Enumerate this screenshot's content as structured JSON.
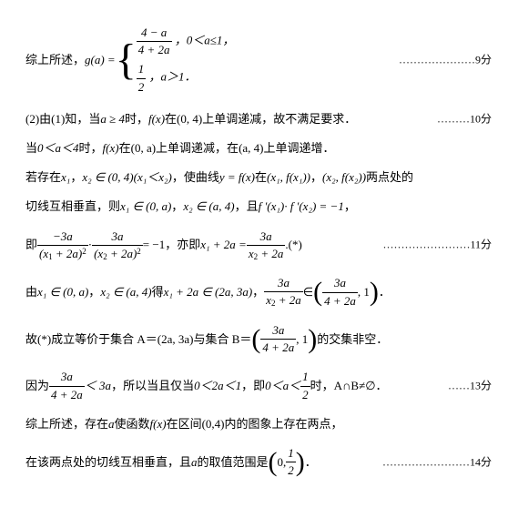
{
  "summary_label": "综上所述，",
  "g_expr": "g(a) =",
  "case1_cond": "，0＜a≤1，",
  "case2_cond": "，a＞1．",
  "case1_num": "4 − a",
  "case1_den": "4 + 2a",
  "case2_num": "1",
  "case2_den": "2",
  "score9": "…………………9分",
  "line2_t1": "(2)由(1)知，当 ",
  "line2_m1": "a ≥ 4",
  "line2_t2": "时，",
  "line2_m2": "f(x)",
  "line2_t3": "在",
  "line2_m3": "(0, 4)",
  "line2_t4": "上单调递减，故不满足要求．",
  "score10": "………10分",
  "line3_t1": "当",
  "line3_m1": "0＜a＜4",
  "line3_t2": "时，",
  "line3_m2": "f(x)",
  "line3_t3": "在",
  "line3_m3": "(0, a)",
  "line3_t4": "上单调递减，在",
  "line3_m4": "(a, 4)",
  "line3_t5": "上单调递增．",
  "line4_t1": "若存在",
  "line4_m1": "x₁",
  "line4_t2": "，",
  "line4_m2": "x₂ ∈ (0, 4)",
  "line4_m3": " (x₁＜x₂)",
  "line4_t3": "，使曲线",
  "line4_m4": "y = f(x)",
  "line4_t4": "在",
  "line4_m5": "(x₁, f(x₁))",
  "line4_t5": "，",
  "line4_m6": "(x₂, f(x₂))",
  "line4_t6": "两点处的",
  "line5_t1": "切线互相垂直，则",
  "line5_m1": "x₁ ∈ (0, a)",
  "line5_t2": "，",
  "line5_m2": "x₂ ∈ (a, 4)",
  "line5_t3": "，且",
  "line5_m3": "f '(x₁)· f '(x₂) = −1",
  "line5_t4": "，",
  "line6_t1": "即 ",
  "f1_num": "−3a",
  "f1_den_l": "(x",
  "f1_den_sub": "1",
  "f1_den_r": " + 2a)",
  "f1_den_sup": "2",
  "mid_dot": " · ",
  "f2_num": "3a",
  "f2_den_l": "(x",
  "f2_den_sub": "2",
  "f2_den_r": " + 2a)",
  "eq_neg1": " = −1",
  "line6_t2": "，亦即 ",
  "line6_m2": "x₁ + 2a = ",
  "f3_num": "3a",
  "f3_den_l": "x",
  "f3_den_sub": "2",
  "f3_den_r": " + 2a",
  "star": " .(*)",
  "score11": "……………………11分",
  "line7_t1": "由",
  "line7_m1": "x₁ ∈ (0, a)",
  "line7_t2": "，",
  "line7_m2": "x₂ ∈ (a, 4)",
  "line7_t3": "得",
  "line7_m3": "x₁ + 2a ∈ (2a, 3a)",
  "line7_t4": " ，",
  "f4_num": "3a",
  "f4_den_l": "x",
  "f4_den_sub": "2",
  "f4_den_r": " + 2a",
  "in_big": " ∈ ",
  "f5_num": "3a",
  "f5_den": "4 + 2a",
  "one_close": ", 1",
  "period": "．",
  "line8_t1": "故(*)成立等价于集合 A＝",
  "line8_m1": "(2a, 3a)",
  "line8_t2": " 与集合 B＝",
  "line8_t3": "的交集非空．",
  "line9_t1": "因为 ",
  "lt3a": " ＜ 3a",
  "line9_t2": "，所以当且仅当",
  "line9_m1": "0＜2a＜1",
  "line9_t3": "，即",
  "line9_m2": "0＜a＜",
  "half_num": "1",
  "half_den": "2",
  "line9_t4": "时，A∩B≠∅．",
  "score13": "……13分",
  "line10_t1": "综上所述，存在",
  "line10_m1": "a",
  "line10_t2": "使函数",
  "line10_m2": "f(x)",
  "line10_t3": "在区间(0,4)内的图象上存在两点，",
  "line11_t1": "在该两点处的切线互相垂直，且",
  "line11_m1": "a",
  "line11_t2": "的取值范围是",
  "zero_open": "0, ",
  "score14": "……………………14分"
}
